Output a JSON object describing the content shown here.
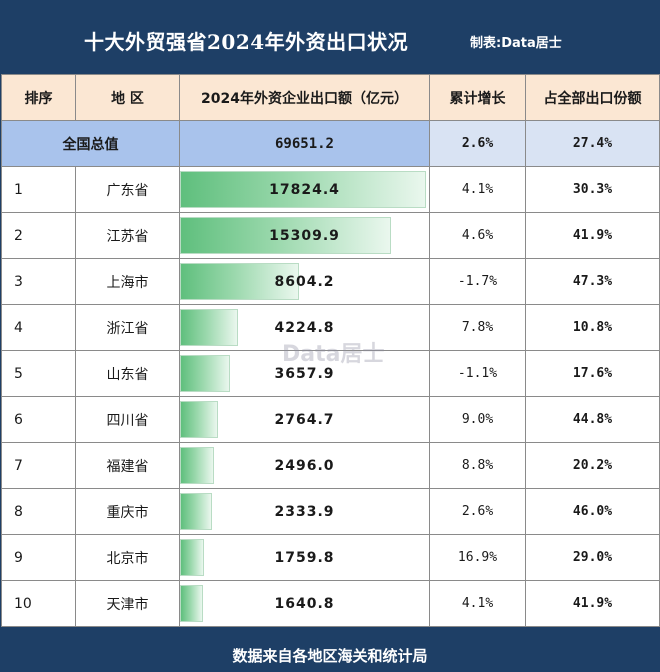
{
  "header": {
    "title": "十大外贸强省2024年外资出口状况",
    "credit": "制表:Data居士"
  },
  "watermark": "Data居士",
  "footer": "数据来自各地区海关和统计局",
  "chart_data": {
    "type": "table",
    "title": "十大外贸强省2024年外资出口状况",
    "columns": [
      "排序",
      "地 区",
      "2024年外资企业出口额（亿元）",
      "累计增长",
      "占全部出口份额"
    ],
    "total": {
      "label": "全国总值",
      "value": "69651.2",
      "growth": "2.6%",
      "share": "27.4%"
    },
    "rows": [
      {
        "rank": "1",
        "region": "广东省",
        "value": "17824.4",
        "growth": "4.1%",
        "share": "30.3%"
      },
      {
        "rank": "2",
        "region": "江苏省",
        "value": "15309.9",
        "growth": "4.6%",
        "share": "41.9%"
      },
      {
        "rank": "3",
        "region": "上海市",
        "value": "8604.2",
        "growth": "-1.7%",
        "share": "47.3%"
      },
      {
        "rank": "4",
        "region": "浙江省",
        "value": "4224.8",
        "growth": "7.8%",
        "share": "10.8%"
      },
      {
        "rank": "5",
        "region": "山东省",
        "value": "3657.9",
        "growth": "-1.1%",
        "share": "17.6%"
      },
      {
        "rank": "6",
        "region": "四川省",
        "value": "2764.7",
        "growth": "9.0%",
        "share": "44.8%"
      },
      {
        "rank": "7",
        "region": "福建省",
        "value": "2496.0",
        "growth": "8.8%",
        "share": "20.2%"
      },
      {
        "rank": "8",
        "region": "重庆市",
        "value": "2333.9",
        "growth": "2.6%",
        "share": "46.0%"
      },
      {
        "rank": "9",
        "region": "北京市",
        "value": "1759.8",
        "growth": "16.9%",
        "share": "29.0%"
      },
      {
        "rank": "10",
        "region": "天津市",
        "value": "1640.8",
        "growth": "4.1%",
        "share": "41.9%"
      }
    ],
    "bar_max": 17824.4
  },
  "colors": {
    "header_bg": "#1e3f66",
    "column_header_bg": "#fbe7d3",
    "total_row_bg": "#a9c3ec",
    "bar_green": "#5fbf7d"
  }
}
